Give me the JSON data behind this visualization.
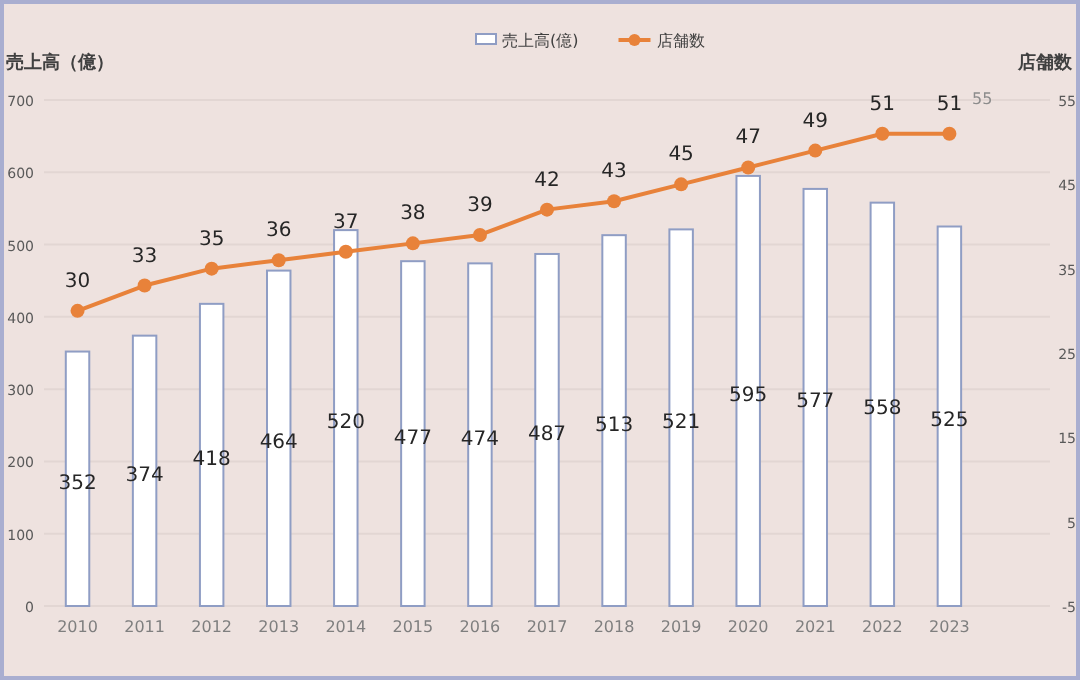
{
  "chart_data": {
    "type": "bar",
    "categories": [
      "2010",
      "2011",
      "2012",
      "2013",
      "2014",
      "2015",
      "2016",
      "2017",
      "2018",
      "2019",
      "2020",
      "2021",
      "2022",
      "2023"
    ],
    "series": [
      {
        "name": "売上高(億)",
        "color": "#ffffff",
        "values": [
          352,
          374,
          418,
          464,
          520,
          477,
          474,
          487,
          513,
          521,
          595,
          577,
          558,
          525
        ]
      },
      {
        "name": "店舗数",
        "type": "line",
        "axis": "y2",
        "color": "#e8823a",
        "marker": "circle",
        "values": [
          30,
          33,
          35,
          36,
          37,
          38,
          39,
          42,
          43,
          45,
          47,
          49,
          51,
          51
        ]
      }
    ],
    "ylabel": "売上高（億）",
    "y2label": "店舗数",
    "ylim": [
      0,
      700
    ],
    "yticks": [
      0,
      100,
      200,
      300,
      400,
      500,
      600,
      700
    ],
    "y2lim": [
      -5,
      55
    ],
    "y2ticks": [
      -5,
      5,
      15,
      25,
      35,
      45,
      55
    ],
    "annotations": [
      "55"
    ],
    "data_labels": true,
    "grid": "y",
    "legend": "top"
  }
}
